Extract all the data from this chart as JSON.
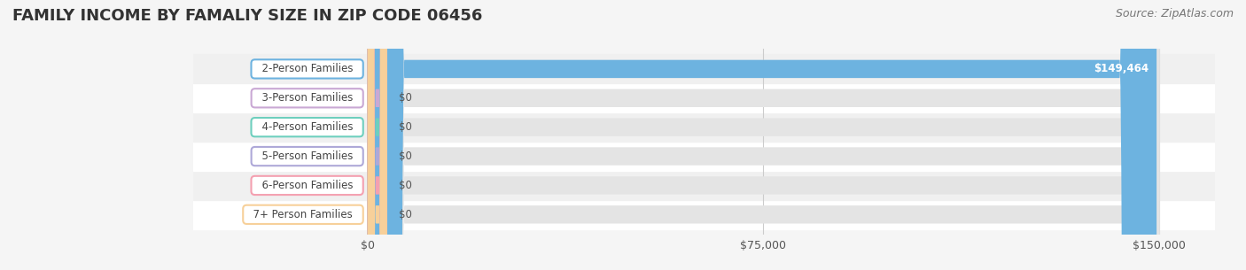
{
  "title": "FAMILY INCOME BY FAMALIY SIZE IN ZIP CODE 06456",
  "source": "Source: ZipAtlas.com",
  "categories": [
    "2-Person Families",
    "3-Person Families",
    "4-Person Families",
    "5-Person Families",
    "6-Person Families",
    "7+ Person Families"
  ],
  "values": [
    149464,
    0,
    0,
    0,
    0,
    0
  ],
  "max_value": 150000,
  "bar_colors": [
    "#6db3e0",
    "#c9a8d4",
    "#6ecfbe",
    "#aea8d8",
    "#f4a0b0",
    "#f7d09a"
  ],
  "label_colors": [
    "#6db3e0",
    "#c9a8d4",
    "#6ecfbe",
    "#aea8d8",
    "#f4a0b0",
    "#f7d09a"
  ],
  "value_labels": [
    "$149,464",
    "$0",
    "$0",
    "$0",
    "$0",
    "$0"
  ],
  "x_ticks": [
    0,
    75000,
    150000
  ],
  "x_tick_labels": [
    "$0",
    "$75,000",
    "$150,000"
  ],
  "background_color": "#f5f5f5",
  "bar_bg_color": "#e8e8e8",
  "title_fontsize": 13,
  "source_fontsize": 9,
  "label_fontsize": 8.5
}
